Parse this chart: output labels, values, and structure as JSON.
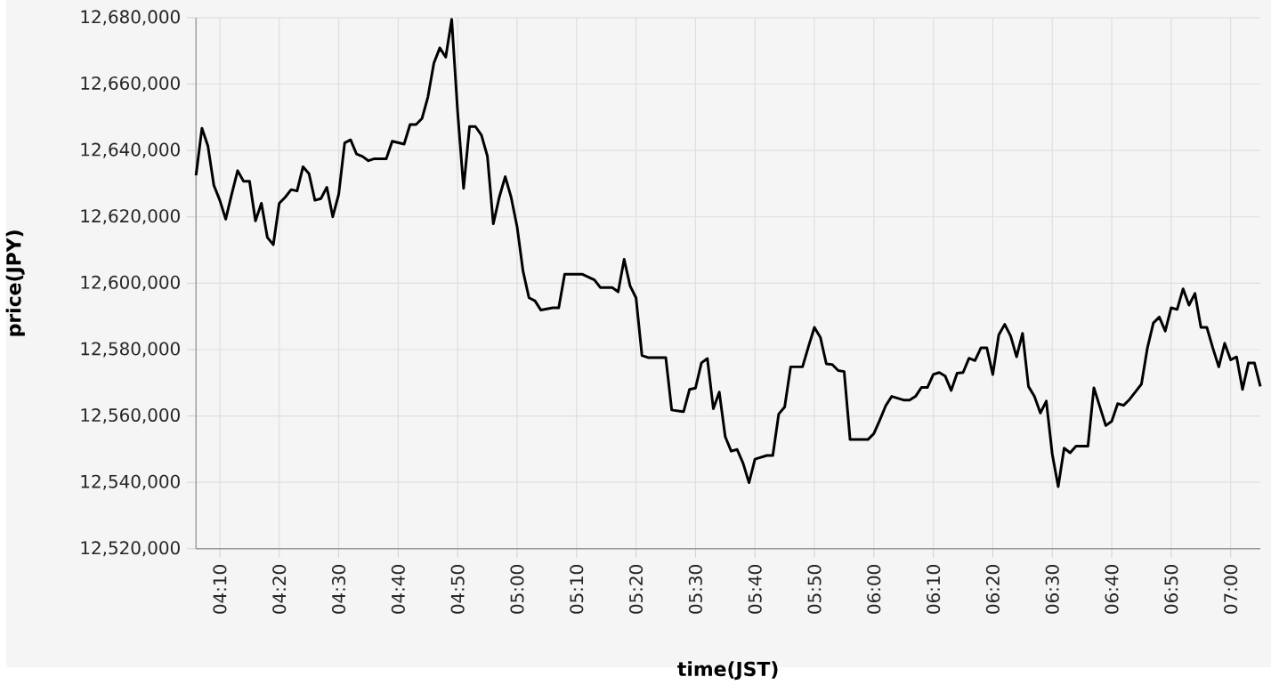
{
  "chart_data": {
    "type": "line",
    "xlabel": "time(JST)",
    "ylabel": "price(JPY)",
    "x": [
      4.1,
      4.1167,
      4.1333,
      4.15,
      4.1667,
      4.1833,
      4.2,
      4.2167,
      4.2333,
      4.25,
      4.2667,
      4.2833,
      4.3,
      4.3167,
      4.3333,
      4.35,
      4.3667,
      4.3833,
      4.4,
      4.4167,
      4.4333,
      4.45,
      4.4667,
      4.4833,
      4.5,
      4.5167,
      4.5333,
      4.55,
      4.5667,
      4.5833,
      4.6,
      4.6333,
      4.65,
      4.6833,
      4.7,
      4.7167,
      4.7333,
      4.75,
      4.7667,
      4.7833,
      4.8,
      4.8167,
      4.8333,
      4.85,
      4.8667,
      4.8833,
      4.9,
      4.9167,
      4.9333,
      4.95,
      4.9667,
      4.9833,
      5,
      5.0167,
      5.0333,
      5.05,
      5.0667,
      5.1,
      5.1167,
      5.1333,
      5.1833,
      5.2167,
      5.2333,
      5.2667,
      5.2833,
      5.3,
      5.3167,
      5.3333,
      5.35,
      5.3667,
      5.4167,
      5.4333,
      5.4667,
      5.4833,
      5.5,
      5.5167,
      5.5333,
      5.55,
      5.5667,
      5.5833,
      5.6,
      5.6167,
      5.6333,
      5.65,
      5.6667,
      5.7,
      5.7167,
      5.7333,
      5.75,
      5.7667,
      5.8,
      5.8167,
      5.8333,
      5.85,
      5.8667,
      5.8833,
      5.9,
      5.9167,
      5.9333,
      5.9833,
      6,
      6.0167,
      6.0333,
      6.05,
      6.0833,
      6.1,
      6.1167,
      6.1333,
      6.15,
      6.1667,
      6.1833,
      6.2,
      6.2167,
      6.2333,
      6.25,
      6.2667,
      6.2833,
      6.3,
      6.3167,
      6.3333,
      6.35,
      6.3667,
      6.3833,
      6.4,
      6.4167,
      6.4333,
      6.45,
      6.4667,
      6.4833,
      6.5,
      6.5167,
      6.5333,
      6.55,
      6.5667,
      6.6,
      6.6167,
      6.6333,
      6.65,
      6.6667,
      6.6833,
      6.7,
      6.7167,
      6.7333,
      6.75,
      6.7667,
      6.7833,
      6.8,
      6.8167,
      6.8333,
      6.85,
      6.8667,
      6.8833,
      6.9,
      6.9167,
      6.9333,
      6.95,
      6.9667,
      6.9833,
      7,
      7.0167,
      7.0333,
      7.05,
      7.0667,
      7.0833
    ],
    "series": [
      {
        "color": "#000000",
        "values": [
          12632500,
          12646700,
          12641400,
          12629500,
          12625000,
          12619300,
          12626800,
          12633900,
          12630700,
          12630700,
          12618800,
          12624100,
          12613800,
          12611600,
          12624100,
          12625900,
          12628200,
          12627800,
          12635100,
          12633000,
          12625000,
          12625500,
          12628900,
          12620000,
          12626800,
          12642300,
          12643200,
          12638900,
          12638200,
          12636900,
          12637500,
          12637500,
          12642800,
          12641900,
          12647800,
          12647800,
          12649600,
          12656100,
          12666300,
          12670900,
          12668100,
          12679500,
          12651700,
          12628600,
          12647200,
          12647200,
          12644600,
          12638300,
          12617900,
          12625900,
          12632100,
          12625900,
          12617000,
          12603600,
          12595600,
          12594700,
          12591900,
          12592600,
          12592600,
          12602700,
          12602700,
          12601000,
          12598700,
          12598700,
          12597400,
          12607200,
          12599200,
          12595600,
          12578200,
          12577600,
          12577600,
          12561800,
          12561300,
          12568000,
          12568400,
          12576000,
          12577300,
          12562200,
          12567200,
          12553800,
          12549400,
          12549900,
          12545800,
          12539900,
          12547000,
          12548100,
          12548100,
          12560600,
          12562700,
          12574800,
          12574800,
          12580900,
          12586700,
          12583700,
          12575700,
          12575500,
          12573700,
          12573400,
          12552900,
          12552900,
          12554700,
          12558800,
          12563100,
          12565900,
          12564800,
          12564800,
          12565900,
          12568600,
          12568600,
          12572500,
          12573100,
          12572000,
          12567700,
          12572900,
          12573100,
          12577400,
          12576700,
          12580500,
          12580500,
          12572500,
          12584400,
          12587600,
          12584100,
          12577800,
          12584900,
          12568900,
          12565900,
          12560900,
          12564500,
          12548500,
          12538700,
          12550300,
          12548900,
          12550900,
          12550900,
          12568500,
          12562800,
          12557100,
          12558400,
          12563700,
          12563200,
          12565000,
          12567300,
          12569600,
          12580500,
          12588000,
          12589800,
          12585600,
          12592600,
          12592100,
          12598300,
          12593400,
          12596900,
          12586700,
          12586700,
          12580500,
          12574800,
          12581900,
          12576900,
          12577800,
          12568000,
          12576000,
          12576000,
          12568900
        ]
      }
    ],
    "xlim": [
      4.1,
      7.0833
    ],
    "xticks": [
      {
        "value": 4.1667,
        "label": "04:10"
      },
      {
        "value": 4.3333,
        "label": "04:20"
      },
      {
        "value": 4.5,
        "label": "04:30"
      },
      {
        "value": 4.6667,
        "label": "04:40"
      },
      {
        "value": 4.8333,
        "label": "04:50"
      },
      {
        "value": 5,
        "label": "05:00"
      },
      {
        "value": 5.1667,
        "label": "05:10"
      },
      {
        "value": 5.3333,
        "label": "05:20"
      },
      {
        "value": 5.5,
        "label": "05:30"
      },
      {
        "value": 5.6667,
        "label": "05:40"
      },
      {
        "value": 5.8333,
        "label": "05:50"
      },
      {
        "value": 6,
        "label": "06:00"
      },
      {
        "value": 6.1667,
        "label": "06:10"
      },
      {
        "value": 6.3333,
        "label": "06:20"
      },
      {
        "value": 6.5,
        "label": "06:30"
      },
      {
        "value": 6.6667,
        "label": "06:40"
      },
      {
        "value": 6.8333,
        "label": "06:50"
      },
      {
        "value": 7,
        "label": "07:00"
      }
    ],
    "ylim": [
      12520000,
      12680000
    ],
    "yticks": [
      {
        "value": 12520000,
        "label": "12,520,000"
      },
      {
        "value": 12540000,
        "label": "12,540,000"
      },
      {
        "value": 12560000,
        "label": "12,560,000"
      },
      {
        "value": 12580000,
        "label": "12,580,000"
      },
      {
        "value": 12600000,
        "label": "12,600,000"
      },
      {
        "value": 12620000,
        "label": "12,620,000"
      },
      {
        "value": 12640000,
        "label": "12,640,000"
      },
      {
        "value": 12660000,
        "label": "12,660,000"
      },
      {
        "value": 12680000,
        "label": "12,680,000"
      }
    ],
    "grid": true,
    "marker": "none",
    "line_style": "solid"
  }
}
